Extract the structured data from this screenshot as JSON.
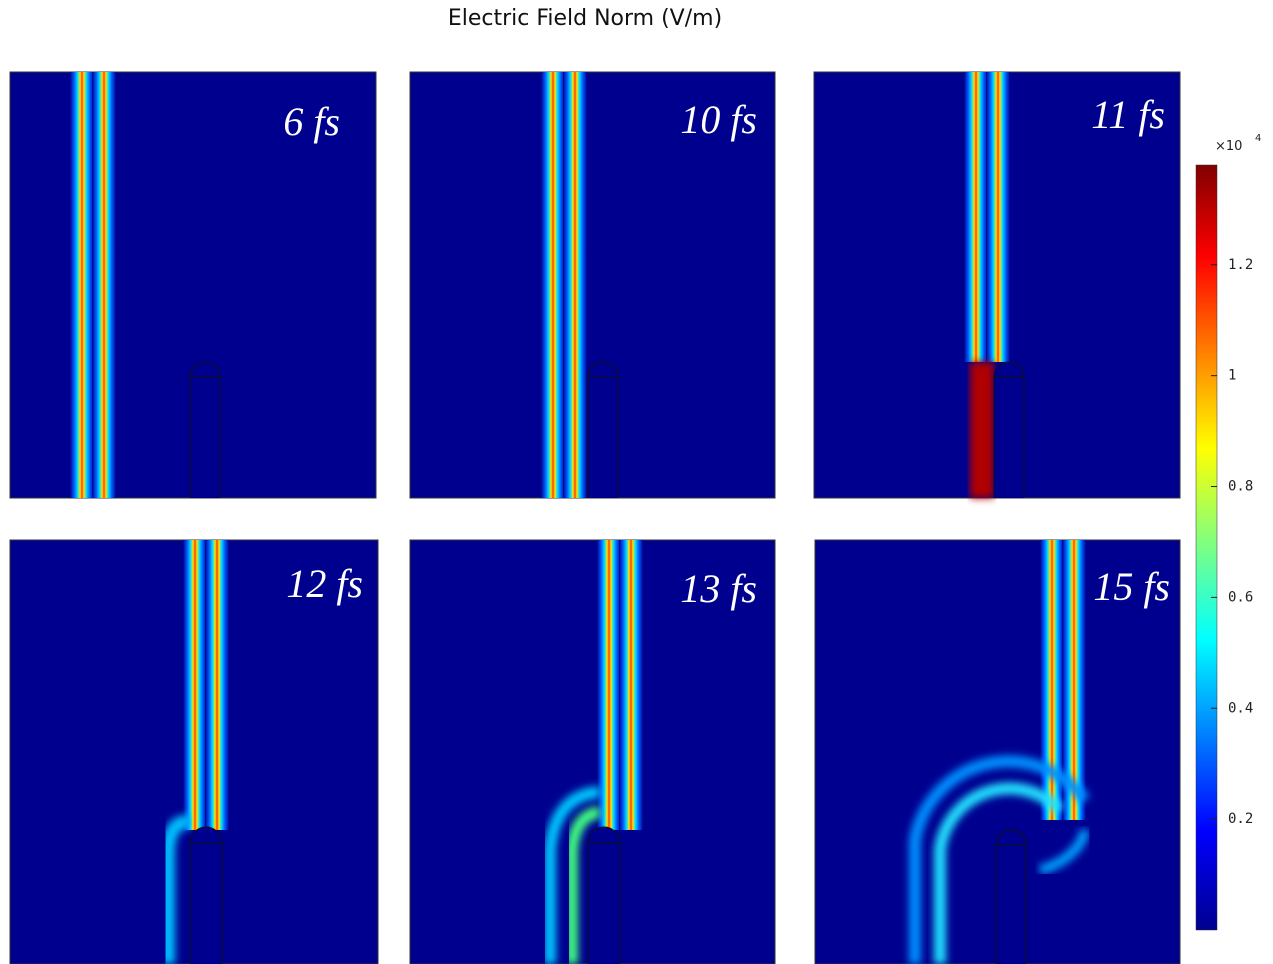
{
  "title": "Electric Field Norm (V/m)",
  "panels": [
    {
      "label": "6 fs"
    },
    {
      "label": "10 fs"
    },
    {
      "label": "11 fs"
    },
    {
      "label": "12 fs"
    },
    {
      "label": "13 fs"
    },
    {
      "label": "15 fs"
    }
  ],
  "colorbar": {
    "multiplier": "×10",
    "exponent": "4",
    "range": [
      0,
      1.38
    ],
    "ticks": [
      0.2,
      0.4,
      0.6,
      0.8,
      1,
      1.2
    ]
  }
}
